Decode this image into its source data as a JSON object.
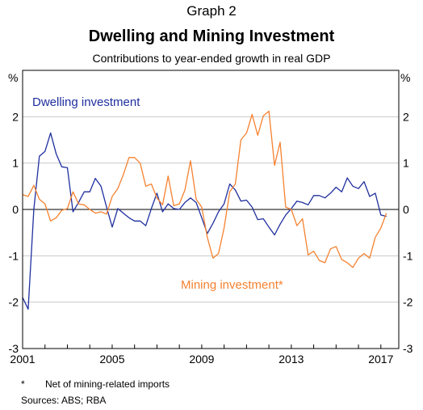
{
  "header": {
    "graph_number": "Graph 2",
    "title": "Dwelling and Mining Investment",
    "subtitle": "Contributions to year-ended growth in real GDP"
  },
  "footer": {
    "footnote_marker": "*",
    "footnote_text": "Net of mining-related imports",
    "sources": "Sources:  ABS; RBA"
  },
  "chart_data": {
    "type": "line",
    "title": "Dwelling and Mining Investment",
    "subtitle": "Contributions to year-ended growth in real GDP",
    "ylabel_left": "%",
    "ylabel_right": "%",
    "ylim": [
      -3,
      3
    ],
    "yticks": [
      -3,
      -2,
      -1,
      0,
      1,
      2
    ],
    "xlim": [
      2001,
      2017.8
    ],
    "xticks": [
      2001,
      2005,
      2009,
      2013,
      2017
    ],
    "grid": "horizontal",
    "series": [
      {
        "name": "Dwelling investment",
        "color": "#1f2f9e",
        "x": [
          2001.0,
          2001.25,
          2001.5,
          2001.75,
          2002.0,
          2002.25,
          2002.5,
          2002.75,
          2003.0,
          2003.25,
          2003.5,
          2003.75,
          2004.0,
          2004.25,
          2004.5,
          2004.75,
          2005.0,
          2005.25,
          2005.5,
          2005.75,
          2006.0,
          2006.25,
          2006.5,
          2006.75,
          2007.0,
          2007.25,
          2007.5,
          2007.75,
          2008.0,
          2008.25,
          2008.5,
          2008.75,
          2009.0,
          2009.25,
          2009.5,
          2009.75,
          2010.0,
          2010.25,
          2010.5,
          2010.75,
          2011.0,
          2011.25,
          2011.5,
          2011.75,
          2012.0,
          2012.25,
          2012.5,
          2012.75,
          2013.0,
          2013.25,
          2013.5,
          2013.75,
          2014.0,
          2014.25,
          2014.5,
          2014.75,
          2015.0,
          2015.25,
          2015.5,
          2015.75,
          2016.0,
          2016.25,
          2016.5,
          2016.75,
          2017.0,
          2017.25
        ],
        "values": [
          -1.9,
          -2.15,
          0.0,
          1.15,
          1.25,
          1.65,
          1.2,
          0.92,
          0.9,
          -0.05,
          0.15,
          0.38,
          0.38,
          0.67,
          0.5,
          0.05,
          -0.38,
          0.02,
          -0.08,
          -0.18,
          -0.25,
          -0.25,
          -0.35,
          0.02,
          0.35,
          -0.05,
          0.12,
          0.02,
          0.0,
          0.15,
          0.25,
          0.15,
          -0.18,
          -0.52,
          -0.3,
          -0.05,
          0.12,
          0.55,
          0.42,
          0.18,
          0.2,
          0.05,
          -0.22,
          -0.2,
          -0.38,
          -0.55,
          -0.32,
          -0.12,
          0.02,
          0.18,
          0.15,
          0.1,
          0.3,
          0.3,
          0.25,
          0.35,
          0.48,
          0.38,
          0.68,
          0.5,
          0.45,
          0.6,
          0.28,
          0.35,
          -0.12,
          -0.15
        ]
      },
      {
        "name": "Mining investment*",
        "color": "#f58230",
        "x": [
          2001.0,
          2001.25,
          2001.5,
          2001.75,
          2002.0,
          2002.25,
          2002.5,
          2002.75,
          2003.0,
          2003.25,
          2003.5,
          2003.75,
          2004.0,
          2004.25,
          2004.5,
          2004.75,
          2005.0,
          2005.25,
          2005.5,
          2005.75,
          2006.0,
          2006.25,
          2006.5,
          2006.75,
          2007.0,
          2007.25,
          2007.5,
          2007.75,
          2008.0,
          2008.25,
          2008.5,
          2008.75,
          2009.0,
          2009.25,
          2009.5,
          2009.75,
          2010.0,
          2010.25,
          2010.5,
          2010.75,
          2011.0,
          2011.25,
          2011.5,
          2011.75,
          2012.0,
          2012.25,
          2012.5,
          2012.75,
          2013.0,
          2013.25,
          2013.5,
          2013.75,
          2014.0,
          2014.25,
          2014.5,
          2014.75,
          2015.0,
          2015.25,
          2015.5,
          2015.75,
          2016.0,
          2016.25,
          2016.5,
          2016.75,
          2017.0,
          2017.25
        ],
        "values": [
          0.32,
          0.28,
          0.52,
          0.22,
          0.12,
          -0.25,
          -0.18,
          -0.02,
          0.02,
          0.38,
          0.12,
          0.1,
          0.0,
          -0.08,
          -0.05,
          -0.1,
          0.28,
          0.45,
          0.75,
          1.12,
          1.12,
          1.0,
          0.5,
          0.55,
          0.25,
          0.1,
          0.72,
          0.08,
          0.12,
          0.42,
          1.05,
          0.22,
          0.05,
          -0.6,
          -1.05,
          -0.95,
          -0.4,
          0.38,
          0.55,
          1.5,
          1.65,
          2.05,
          1.6,
          2.02,
          2.12,
          0.95,
          1.45,
          0.05,
          0.0,
          -0.35,
          -0.2,
          -0.98,
          -0.9,
          -1.1,
          -1.15,
          -0.85,
          -0.8,
          -1.08,
          -1.15,
          -1.25,
          -1.05,
          -0.95,
          -1.05,
          -0.6,
          -0.4,
          -0.08
        ]
      }
    ],
    "annotations": [
      "Dwelling investment",
      "Mining investment*"
    ]
  }
}
